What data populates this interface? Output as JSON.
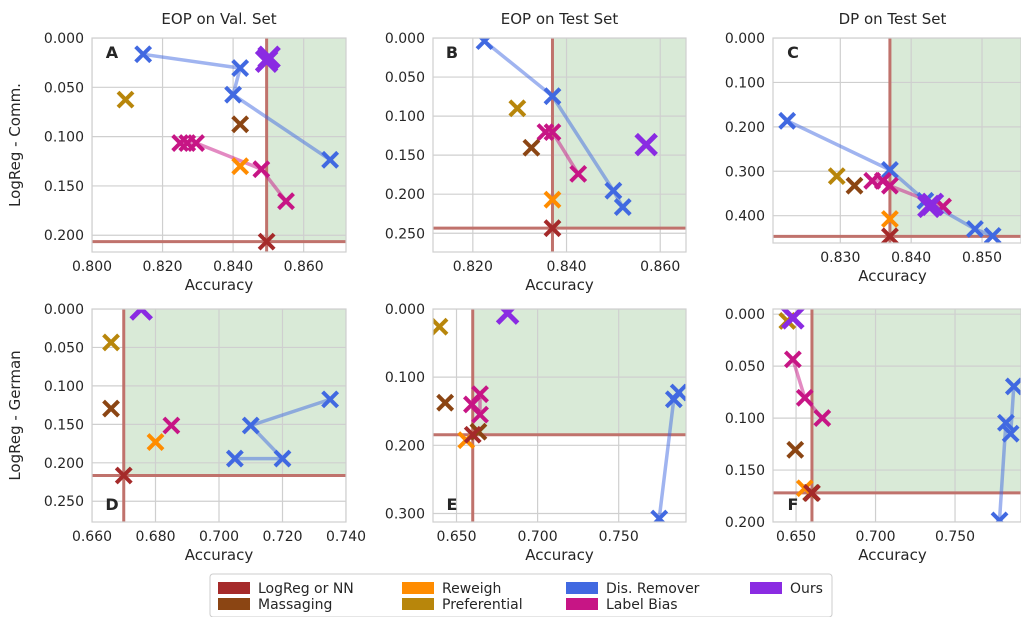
{
  "legend": [
    {
      "label": "LogReg or NN",
      "color": "#a52a2a"
    },
    {
      "label": "Massaging",
      "color": "#8b4513"
    },
    {
      "label": "Reweigh",
      "color": "#ff8c00"
    },
    {
      "label": "Preferential",
      "color": "#b8860b"
    },
    {
      "label": "Dis. Remover",
      "color": "#4169e1"
    },
    {
      "label": "Label Bias",
      "color": "#c71585"
    },
    {
      "label": "Ours",
      "color": "#8a2be2"
    }
  ],
  "chart_data": [
    {
      "type": "scatter",
      "panel": "A",
      "title": "EOP on Val. Set",
      "xlabel": "Accuracy",
      "ylabel": "LogReg - Comm.",
      "xlim": [
        0.8,
        0.872
      ],
      "ylim": [
        0.0,
        0.217
      ],
      "y_inverted": true,
      "xticks": [
        "0.800",
        "0.820",
        "0.840",
        "0.860"
      ],
      "xtick_values": [
        0.8,
        0.82,
        0.84,
        0.86
      ],
      "yticks": [
        "0.000",
        "0.050",
        "0.100",
        "0.150",
        "0.200"
      ],
      "ytick_values": [
        0.0,
        0.05,
        0.1,
        0.15,
        0.2
      ],
      "baseline": {
        "x": 0.8495,
        "y": 0.2065
      },
      "series": [
        {
          "name": "Dis. Remover",
          "color": "#4169e1",
          "line": true,
          "points": [
            [
              0.8145,
              0.0165
            ],
            [
              0.842,
              0.0305
            ],
            [
              0.84,
              0.0575
            ],
            [
              0.8675,
              0.1235
            ]
          ]
        },
        {
          "name": "Label Bias",
          "color": "#c71585",
          "line": true,
          "points": [
            [
              0.825,
              0.1065
            ],
            [
              0.827,
              0.1065
            ],
            [
              0.8295,
              0.1065
            ],
            [
              0.848,
              0.133
            ],
            [
              0.855,
              0.1655
            ]
          ]
        },
        {
          "name": "Massaging",
          "color": "#8b4513",
          "line": false,
          "points": [
            [
              0.842,
              0.0875
            ]
          ]
        },
        {
          "name": "Preferential",
          "color": "#b8860b",
          "line": false,
          "points": [
            [
              0.8095,
              0.0625
            ]
          ]
        },
        {
          "name": "Reweigh",
          "color": "#ff8c00",
          "line": false,
          "points": [
            [
              0.842,
              0.13
            ]
          ]
        },
        {
          "name": "LogReg or NN",
          "color": "#a52a2a",
          "line": false,
          "points": [
            [
              0.8495,
              0.2065
            ]
          ]
        },
        {
          "name": "Ours",
          "color": "#8a2be2",
          "line": true,
          "points": [
            [
              0.8495,
              0.0235
            ],
            [
              0.8502,
              0.0195
            ]
          ]
        }
      ]
    },
    {
      "type": "scatter",
      "panel": "B",
      "title": "EOP on Test Set",
      "xlabel": "Accuracy",
      "ylabel": "",
      "xlim": [
        0.8115,
        0.8655
      ],
      "ylim": [
        0.0,
        0.274
      ],
      "y_inverted": true,
      "xticks": [
        "0.820",
        "0.840",
        "0.860"
      ],
      "xtick_values": [
        0.82,
        0.84,
        0.86
      ],
      "yticks": [
        "0.000",
        "0.050",
        "0.100",
        "0.150",
        "0.200",
        "0.250"
      ],
      "ytick_values": [
        0.0,
        0.05,
        0.1,
        0.15,
        0.2,
        0.25
      ],
      "baseline": {
        "x": 0.837,
        "y": 0.2435
      },
      "series": [
        {
          "name": "Dis. Remover",
          "color": "#4169e1",
          "line": true,
          "points": [
            [
              0.8225,
              0.004
            ],
            [
              0.837,
              0.0745
            ],
            [
              0.85,
              0.1955
            ],
            [
              0.852,
              0.2165
            ]
          ]
        },
        {
          "name": "Label Bias",
          "color": "#c71585",
          "line": true,
          "points": [
            [
              0.8355,
              0.1205
            ],
            [
              0.837,
              0.1205
            ],
            [
              0.8425,
              0.174
            ]
          ]
        },
        {
          "name": "Massaging",
          "color": "#8b4513",
          "line": false,
          "points": [
            [
              0.8325,
              0.1405
            ]
          ]
        },
        {
          "name": "Preferential",
          "color": "#b8860b",
          "line": false,
          "points": [
            [
              0.8295,
              0.09
            ]
          ]
        },
        {
          "name": "Reweigh",
          "color": "#ff8c00",
          "line": false,
          "points": [
            [
              0.837,
              0.207
            ]
          ]
        },
        {
          "name": "LogReg or NN",
          "color": "#a52a2a",
          "line": false,
          "points": [
            [
              0.837,
              0.2435
            ]
          ]
        },
        {
          "name": "Ours",
          "color": "#8a2be2",
          "line": false,
          "points": [
            [
              0.857,
              0.1365
            ]
          ]
        }
      ]
    },
    {
      "type": "scatter",
      "panel": "C",
      "title": "DP on Test Set",
      "xlabel": "Accuracy",
      "ylabel": "",
      "xlim": [
        0.8205,
        0.8555
      ],
      "ylim": [
        0.0,
        0.4615
      ],
      "y_inverted": true,
      "xticks": [
        "0.830",
        "0.840",
        "0.850"
      ],
      "xtick_values": [
        0.83,
        0.84,
        0.85
      ],
      "yticks": [
        "0.000",
        "0.100",
        "0.200",
        "0.300",
        "0.400"
      ],
      "ytick_values": [
        0.0,
        0.1,
        0.2,
        0.3,
        0.4
      ],
      "baseline": {
        "x": 0.837,
        "y": 0.4465
      },
      "series": [
        {
          "name": "Dis. Remover",
          "color": "#4169e1",
          "line": true,
          "points": [
            [
              0.8225,
              0.1865
            ],
            [
              0.837,
              0.297
            ],
            [
              0.842,
              0.3665
            ],
            [
              0.849,
              0.43
            ],
            [
              0.8515,
              0.4455
            ]
          ]
        },
        {
          "name": "Label Bias",
          "color": "#c71585",
          "line": true,
          "points": [
            [
              0.8345,
              0.3215
            ],
            [
              0.836,
              0.3215
            ],
            [
              0.837,
              0.3325
            ],
            [
              0.8445,
              0.3795
            ]
          ]
        },
        {
          "name": "Massaging",
          "color": "#8b4513",
          "line": false,
          "points": [
            [
              0.832,
              0.3325
            ]
          ]
        },
        {
          "name": "Preferential",
          "color": "#b8860b",
          "line": false,
          "points": [
            [
              0.8295,
              0.311
            ]
          ]
        },
        {
          "name": "Reweigh",
          "color": "#ff8c00",
          "line": false,
          "points": [
            [
              0.837,
              0.4075
            ]
          ]
        },
        {
          "name": "LogReg or NN",
          "color": "#a52a2a",
          "line": false,
          "points": [
            [
              0.837,
              0.4465
            ]
          ]
        },
        {
          "name": "Ours",
          "color": "#8a2be2",
          "line": true,
          "points": [
            [
              0.8425,
              0.379
            ],
            [
              0.843,
              0.3745
            ]
          ]
        }
      ]
    },
    {
      "type": "scatter",
      "panel": "D",
      "title": "",
      "xlabel": "Accuracy",
      "ylabel": "LogReg - German",
      "xlim": [
        0.66,
        0.74
      ],
      "ylim": [
        0.0,
        0.277
      ],
      "y_inverted": true,
      "xticks": [
        "0.660",
        "0.680",
        "0.700",
        "0.720",
        "0.740"
      ],
      "xtick_values": [
        0.66,
        0.68,
        0.7,
        0.72,
        0.74
      ],
      "yticks": [
        "0.000",
        "0.050",
        "0.100",
        "0.150",
        "0.200",
        "0.250"
      ],
      "ytick_values": [
        0.0,
        0.05,
        0.1,
        0.15,
        0.2,
        0.25
      ],
      "baseline": {
        "x": 0.67,
        "y": 0.2165
      },
      "series": [
        {
          "name": "Dis. Remover",
          "color": "#4169e1",
          "line": true,
          "points": [
            [
              0.705,
              0.1945
            ],
            [
              0.72,
              0.1945
            ],
            [
              0.71,
              0.1515
            ],
            [
              0.735,
              0.1175
            ]
          ]
        },
        {
          "name": "Label Bias",
          "color": "#c71585",
          "line": false,
          "points": [
            [
              0.685,
              0.1515
            ]
          ]
        },
        {
          "name": "Massaging",
          "color": "#8b4513",
          "line": false,
          "points": [
            [
              0.666,
              0.1295
            ]
          ]
        },
        {
          "name": "Preferential",
          "color": "#b8860b",
          "line": false,
          "points": [
            [
              0.666,
              0.0435
            ]
          ]
        },
        {
          "name": "Reweigh",
          "color": "#ff8c00",
          "line": false,
          "points": [
            [
              0.68,
              0.173
            ]
          ]
        },
        {
          "name": "LogReg or NN",
          "color": "#a52a2a",
          "line": false,
          "points": [
            [
              0.67,
              0.2165
            ]
          ]
        },
        {
          "name": "Ours",
          "color": "#8a2be2",
          "line": false,
          "points": [
            [
              0.6755,
              0.0
            ]
          ]
        }
      ]
    },
    {
      "type": "scatter",
      "panel": "E",
      "title": "",
      "xlabel": "Accuracy",
      "ylabel": "",
      "xlim": [
        0.6355,
        0.7915
      ],
      "ylim": [
        0.0,
        0.3125
      ],
      "y_inverted": true,
      "xticks": [
        "0.650",
        "0.700",
        "0.750"
      ],
      "xtick_values": [
        0.65,
        0.7,
        0.75
      ],
      "yticks": [
        "0.000",
        "0.100",
        "0.200",
        "0.300"
      ],
      "ytick_values": [
        0.0,
        0.1,
        0.2,
        0.3
      ],
      "baseline": {
        "x": 0.66,
        "y": 0.1845
      },
      "series": [
        {
          "name": "Dis. Remover",
          "color": "#4169e1",
          "line": true,
          "points": [
            [
              0.775,
              0.3075
            ],
            [
              0.784,
              0.1325
            ],
            [
              0.787,
              0.1225
            ]
          ]
        },
        {
          "name": "Label Bias",
          "color": "#c71585",
          "line": true,
          "points": [
            [
              0.6595,
              0.14
            ],
            [
              0.6645,
              0.125
            ],
            [
              0.6645,
              0.155
            ]
          ]
        },
        {
          "name": "Massaging",
          "color": "#8b4513",
          "line": false,
          "points": [
            [
              0.643,
              0.1375
            ],
            [
              0.6635,
              0.18
            ]
          ]
        },
        {
          "name": "Preferential",
          "color": "#b8860b",
          "line": false,
          "points": [
            [
              0.6395,
              0.026
            ]
          ]
        },
        {
          "name": "Reweigh",
          "color": "#ff8c00",
          "line": false,
          "points": [
            [
              0.656,
              0.1925
            ]
          ]
        },
        {
          "name": "LogReg or NN",
          "color": "#a52a2a",
          "line": false,
          "points": [
            [
              0.66,
              0.1845
            ]
          ]
        },
        {
          "name": "Ours",
          "color": "#8a2be2",
          "line": false,
          "points": [
            [
              0.6815,
              0.006
            ]
          ]
        }
      ]
    },
    {
      "type": "scatter",
      "panel": "F",
      "title": "",
      "xlabel": "Accuracy",
      "ylabel": "",
      "xlim": [
        0.6355,
        0.7915
      ],
      "ylim": [
        -0.005,
        0.2
      ],
      "y_inverted": true,
      "xticks": [
        "0.650",
        "0.700",
        "0.750"
      ],
      "xtick_values": [
        0.65,
        0.7,
        0.75
      ],
      "yticks": [
        "0.000",
        "0.050",
        "0.100",
        "0.150",
        "0.200"
      ],
      "ytick_values": [
        0.0,
        0.05,
        0.1,
        0.15,
        0.2
      ],
      "baseline": {
        "x": 0.66,
        "y": 0.172
      },
      "series": [
        {
          "name": "Dis. Remover",
          "color": "#4169e1",
          "line": true,
          "points": [
            [
              0.778,
              0.1985
            ],
            [
              0.782,
              0.1045
            ],
            [
              0.785,
              0.115
            ],
            [
              0.787,
              0.0695
            ]
          ]
        },
        {
          "name": "Label Bias",
          "color": "#c71585",
          "line": true,
          "points": [
            [
              0.648,
              0.0435
            ],
            [
              0.6555,
              0.0805
            ],
            [
              0.6665,
              0.1
            ]
          ]
        },
        {
          "name": "Massaging",
          "color": "#8b4513",
          "line": false,
          "points": [
            [
              0.6495,
              0.1305
            ],
            [
              0.6595,
              0.172
            ]
          ]
        },
        {
          "name": "Preferential",
          "color": "#b8860b",
          "line": false,
          "points": [
            [
              0.6445,
              0.0065
            ]
          ]
        },
        {
          "name": "Reweigh",
          "color": "#ff8c00",
          "line": false,
          "points": [
            [
              0.6555,
              0.1675
            ]
          ]
        },
        {
          "name": "LogReg or NN",
          "color": "#a52a2a",
          "line": false,
          "points": [
            [
              0.66,
              0.172
            ]
          ]
        },
        {
          "name": "Ours",
          "color": "#8a2be2",
          "line": false,
          "points": [
            [
              0.648,
              0.0035
            ]
          ]
        }
      ]
    }
  ]
}
